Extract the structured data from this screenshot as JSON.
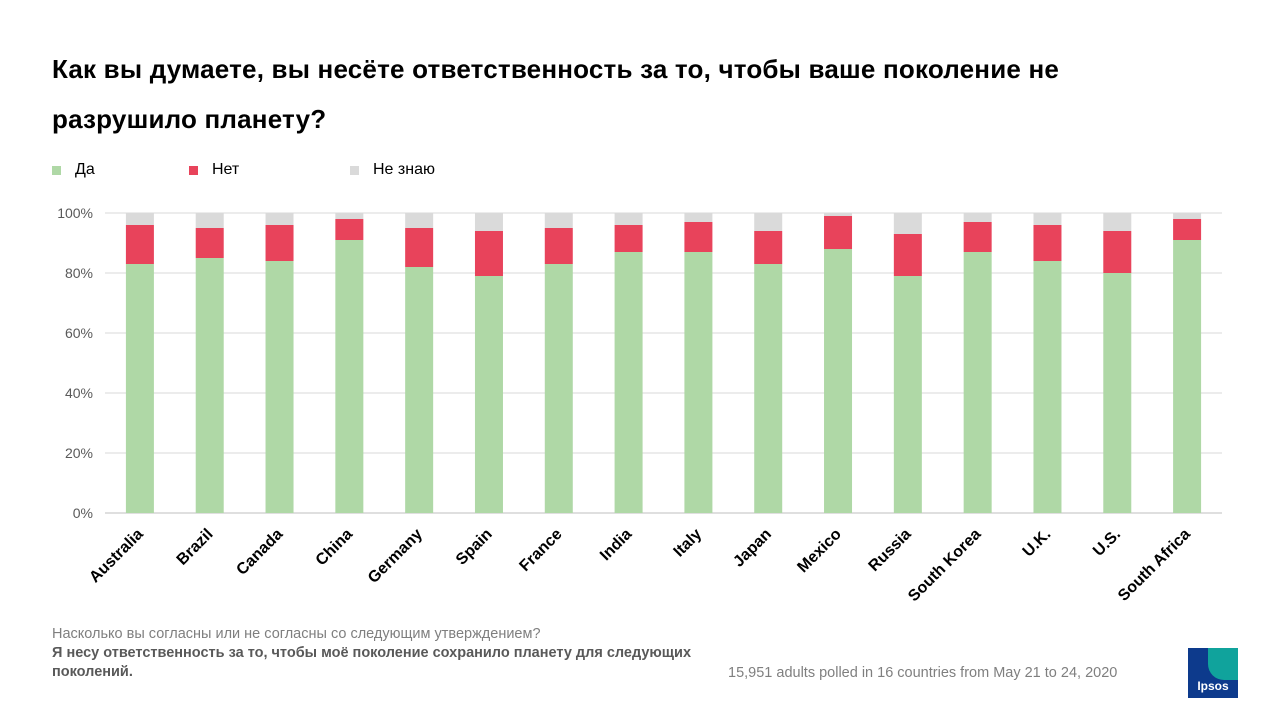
{
  "title_line1": "Как вы думаете, вы несёте ответственность за то, чтобы ваше поколение не",
  "title_line2": "разрушило планету?",
  "legend": [
    {
      "label": "Да",
      "color": "#afd8a6"
    },
    {
      "label": "Нет",
      "color": "#e8435b"
    },
    {
      "label": "Не знаю",
      "color": "#dadada"
    }
  ],
  "chart_data": {
    "type": "bar",
    "stacked": true,
    "categories": [
      "Australia",
      "Brazil",
      "Canada",
      "China",
      "Germany",
      "Spain",
      "France",
      "India",
      "Italy",
      "Japan",
      "Mexico",
      "Russia",
      "South Korea",
      "U.K.",
      "U.S.",
      "South Africa"
    ],
    "series": [
      {
        "name": "Да",
        "color": "#afd8a6",
        "values": [
          83,
          85,
          84,
          91,
          82,
          79,
          83,
          87,
          87,
          83,
          88,
          79,
          87,
          84,
          80,
          91
        ]
      },
      {
        "name": "Нет",
        "color": "#e8435b",
        "values": [
          13,
          10,
          12,
          7,
          13,
          15,
          12,
          9,
          10,
          11,
          11,
          14,
          10,
          12,
          14,
          7
        ]
      },
      {
        "name": "Не знаю",
        "color": "#dadada",
        "values": [
          4,
          5,
          4,
          2,
          5,
          6,
          5,
          4,
          3,
          6,
          1,
          7,
          3,
          4,
          6,
          2
        ]
      }
    ],
    "ylim": [
      0,
      100
    ],
    "yticks": [
      "0%",
      "20%",
      "40%",
      "60%",
      "80%",
      "100%"
    ],
    "grid": true,
    "legend_position": "top-left"
  },
  "footnote_question": "Насколько вы согласны или  не согласны со следующим  утверждением?",
  "footnote_statement": "Я несу ответственность за то, чтобы моё поколение сохранило планету для следующих поколений.",
  "source": "15,951 adults polled in 16 countries from May 21 to 24, 2020",
  "logo_text": "Ipsos"
}
